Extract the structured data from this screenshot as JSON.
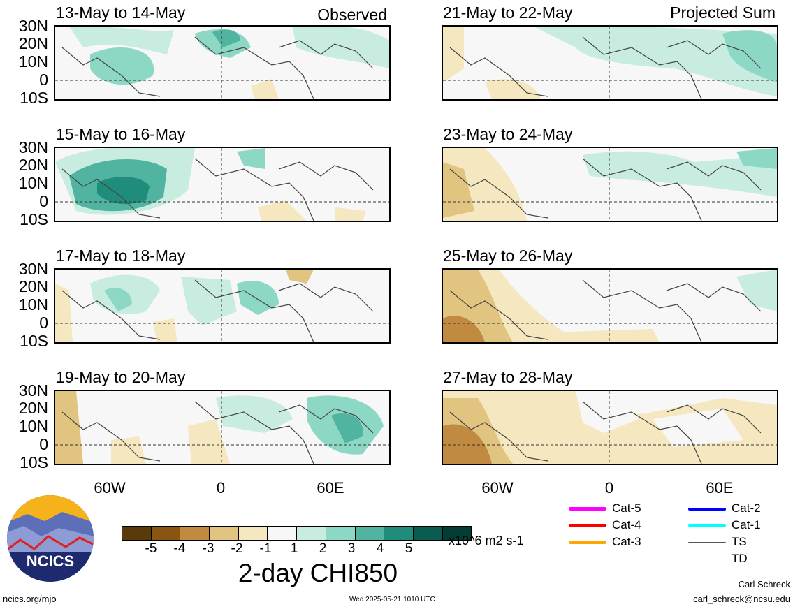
{
  "labels": {
    "observed": "Observed",
    "projected": "Projected Sum"
  },
  "panels": [
    {
      "period": "13-May to 14-May",
      "column": "left"
    },
    {
      "period": "15-May to 16-May",
      "column": "left"
    },
    {
      "period": "17-May to 18-May",
      "column": "left"
    },
    {
      "period": "19-May to 20-May",
      "column": "left"
    },
    {
      "period": "21-May to 22-May",
      "column": "right"
    },
    {
      "period": "23-May to 24-May",
      "column": "right"
    },
    {
      "period": "25-May to 26-May",
      "column": "right"
    },
    {
      "period": "27-May to 28-May",
      "column": "right"
    }
  ],
  "lat_labels": [
    "30N",
    "20N",
    "10N",
    "0",
    "10S"
  ],
  "lon_labels": [
    "60W",
    "0",
    "60E"
  ],
  "colorbar": {
    "colors": [
      "#5a3a08",
      "#8a5510",
      "#c08a40",
      "#e0c480",
      "#f5e8c0",
      "#f7f7f7",
      "#c8ece0",
      "#8cd8c4",
      "#50b4a0",
      "#1f8c7c",
      "#0a5c50",
      "#053c34"
    ],
    "ticks": [
      "-5",
      "-4",
      "-3",
      "-2",
      "-1",
      "1",
      "2",
      "3",
      "4",
      "5"
    ],
    "units": "x10^6 m2 s-1",
    "title": "2-day CHI850"
  },
  "legend": [
    {
      "label": "Cat-5",
      "color": "#ff00ff"
    },
    {
      "label": "Cat-4",
      "color": "#ff0000"
    },
    {
      "label": "Cat-3",
      "color": "#ffa500"
    },
    {
      "label": "Cat-2",
      "color": "#0000ff"
    },
    {
      "label": "Cat-1",
      "color": "#00ffff"
    },
    {
      "label": "TS",
      "color": "#555555"
    },
    {
      "label": "TD",
      "color": "#aaaaaa"
    }
  ],
  "footer": {
    "site": "ncics.org/mjo",
    "timestamp": "Wed 2025-05-21 1010 UTC",
    "author": "Carl Schreck",
    "email": "carl_schreck@ncsu.edu",
    "logo_text": "NCICS"
  }
}
